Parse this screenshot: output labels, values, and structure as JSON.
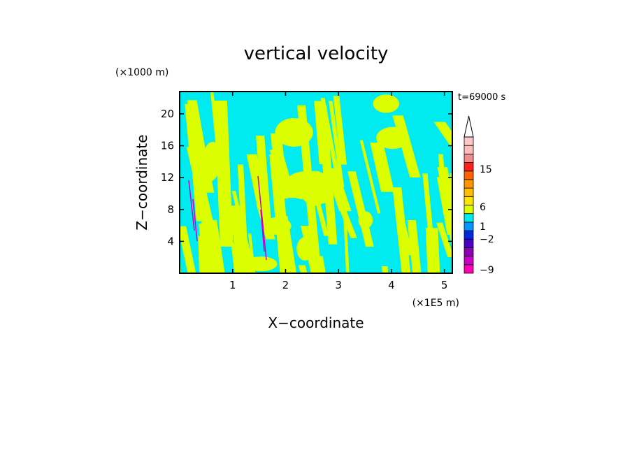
{
  "chart_data": {
    "type": "heatmap",
    "title": "vertical velocity",
    "xlabel": "X−coordinate",
    "ylabel": "Z−coordinate",
    "x_unit": "(×1E5 m)",
    "y_unit": "(×1000 m)",
    "time_label": "t=69000 s",
    "xlim": [
      0,
      5.15
    ],
    "ylim": [
      0,
      22.8
    ],
    "x_ticks": [
      1,
      2,
      3,
      4,
      5
    ],
    "x_tick_labels": [
      "1",
      "2",
      "3",
      "4",
      "5"
    ],
    "y_ticks": [
      4,
      8,
      12,
      16,
      20
    ],
    "y_tick_labels": [
      "4",
      "8",
      "12",
      "16",
      "20"
    ],
    "grid": false,
    "field": {
      "background_color": "#00ebf0",
      "positive_color": "#dcff00",
      "dominant_range": "about -1 to 1"
    },
    "colorbar": {
      "placement": "right",
      "label_values": [
        "15",
        "6",
        "1",
        "−2",
        "−9"
      ],
      "top_extension": "arrow",
      "bands": [
        {
          "color": "#ff00b4"
        },
        {
          "color": "#c800c8"
        },
        {
          "color": "#8c00b4"
        },
        {
          "color": "#4b00c8"
        },
        {
          "color": "#0028dc"
        },
        {
          "color": "#0096ff"
        },
        {
          "color": "#00ebf0"
        },
        {
          "color": "#dcff00"
        },
        {
          "color": "#ffe600"
        },
        {
          "color": "#ffbe00"
        },
        {
          "color": "#ff9600"
        },
        {
          "color": "#ff6400"
        },
        {
          "color": "#ff1e1e"
        },
        {
          "color": "#f08c8c"
        },
        {
          "color": "#ffbebe"
        },
        {
          "color": "#ffc8c8"
        }
      ]
    }
  }
}
